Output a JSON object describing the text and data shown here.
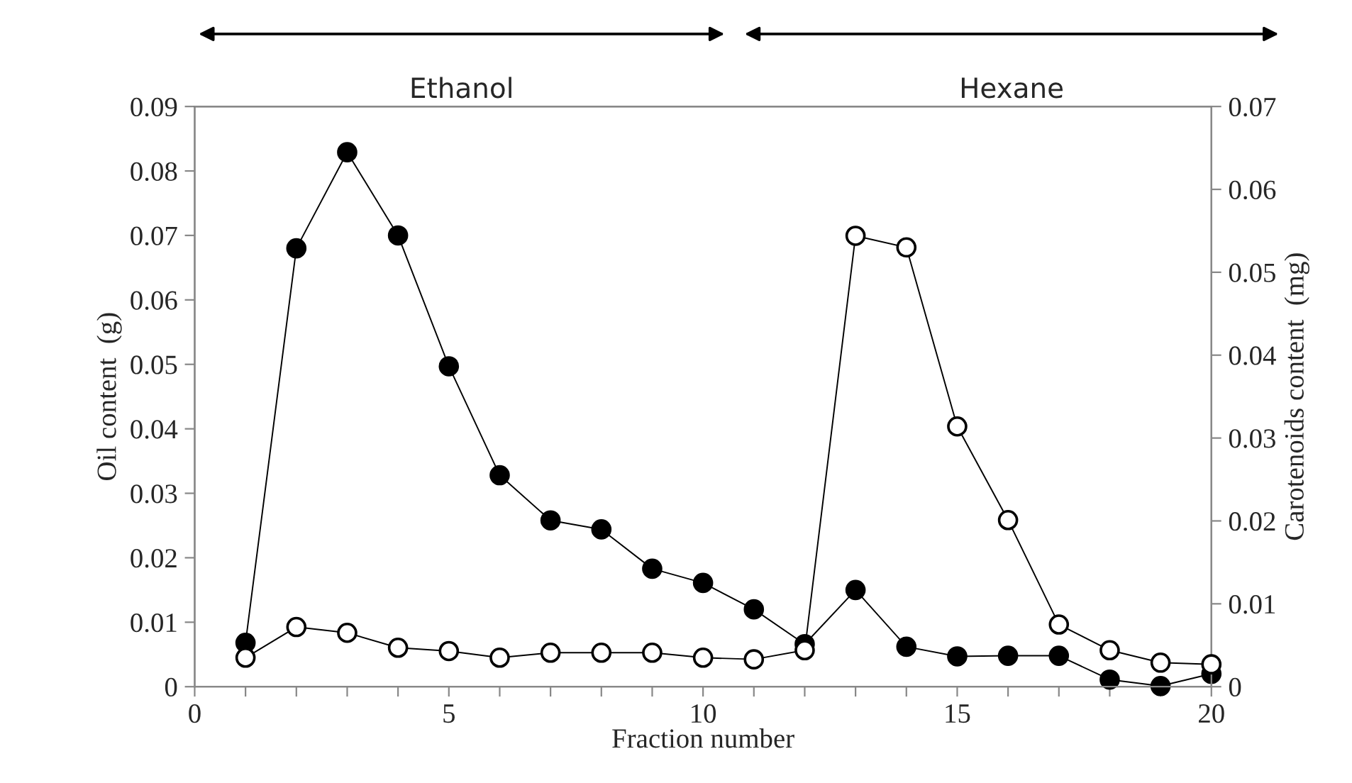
{
  "chart_data": {
    "type": "line",
    "xlabel": "Fraction number",
    "ylabel": "Oil content  (g)",
    "y2label": "Carotenoids content  (mg)",
    "x": [
      1,
      2,
      3,
      4,
      5,
      6,
      7,
      8,
      9,
      10,
      11,
      12,
      13,
      14,
      15,
      16,
      17,
      18,
      19,
      20
    ],
    "series": [
      {
        "color": "#000000",
        "values": [
          0.0068,
          0.068,
          0.0829,
          0.07,
          0.0497,
          0.0328,
          0.0258,
          0.0244,
          0.0183,
          0.0161,
          0.012,
          0.0066,
          0.015,
          0.0062,
          0.0047,
          0.0048,
          0.0048,
          0.0011,
          0.0001,
          0.002
        ]
      },
      {
        "color": "#ffffff",
        "axis": "y2",
        "values": [
          0.0035,
          0.0072,
          0.0065,
          0.0047,
          0.0043,
          0.0035,
          0.0041,
          0.0041,
          0.0041,
          0.0035,
          0.0033,
          0.0044,
          0.0544,
          0.053,
          0.0314,
          0.0201,
          0.0075,
          0.0044,
          0.0029,
          0.0027
        ]
      }
    ],
    "xlim": [
      0,
      20
    ],
    "xticks": [
      0,
      {
        "value": 1,
        "label": null
      },
      {
        "value": 2,
        "label": null
      },
      {
        "value": 3,
        "label": null
      },
      {
        "value": 4,
        "label": null
      },
      5,
      {
        "value": 6,
        "label": null
      },
      {
        "value": 7,
        "label": null
      },
      {
        "value": 8,
        "label": null
      },
      {
        "value": 9,
        "label": null
      },
      10,
      {
        "value": 11,
        "label": null
      },
      {
        "value": 12,
        "label": null
      },
      {
        "value": 13,
        "label": null
      },
      {
        "value": 14,
        "label": null
      },
      15,
      {
        "value": 16,
        "label": null
      },
      {
        "value": 17,
        "label": null
      },
      {
        "value": 18,
        "label": null
      },
      {
        "value": 19,
        "label": null
      },
      20
    ],
    "ylim": [
      0,
      0.09
    ],
    "yticks": [
      0,
      0.01,
      0.02,
      0.03,
      0.04,
      0.05,
      0.06,
      0.07,
      0.08,
      0.09
    ],
    "y2lim": [
      0,
      0.07
    ],
    "y2ticks": [
      0,
      0.01,
      0.02,
      0.03,
      0.04,
      0.05,
      0.06,
      0.07
    ],
    "annotations": [
      "Ethanol",
      "Hexane"
    ],
    "marker": "circle",
    "line_style": "solid",
    "grid": false,
    "legend": false
  }
}
